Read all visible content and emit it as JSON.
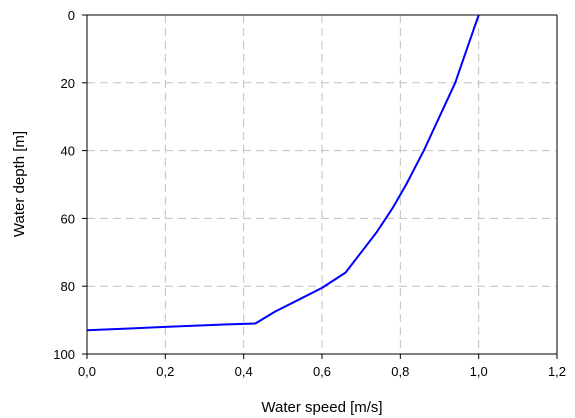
{
  "chart_data": {
    "type": "line",
    "title": "",
    "xlabel": "Water speed [m/s]",
    "ylabel": "Water depth [m]",
    "xlim": [
      0,
      1.2
    ],
    "ylim": [
      0,
      100
    ],
    "y_inverted": true,
    "grid": true,
    "grid_style": "dashed",
    "legend": "none",
    "x_ticks": [
      0,
      0.2,
      0.4,
      0.6,
      0.8,
      1.0,
      1.2
    ],
    "x_tick_labels": [
      "0,0",
      "0,2",
      "0,4",
      "0,6",
      "0,8",
      "1,0",
      "1,2"
    ],
    "y_ticks": [
      0,
      20,
      40,
      60,
      80,
      100
    ],
    "y_tick_labels": [
      "0",
      "20",
      "40",
      "60",
      "80",
      "100"
    ],
    "series": [
      {
        "color": "#0000ff",
        "points": [
          [
            1.0,
            0
          ],
          [
            0.97,
            10
          ],
          [
            0.94,
            20
          ],
          [
            0.9,
            30
          ],
          [
            0.86,
            40
          ],
          [
            0.815,
            50
          ],
          [
            0.78,
            57
          ],
          [
            0.74,
            64
          ],
          [
            0.7,
            70
          ],
          [
            0.66,
            76
          ],
          [
            0.6,
            80.5
          ],
          [
            0.54,
            84
          ],
          [
            0.48,
            87.5
          ],
          [
            0.43,
            91
          ],
          [
            0.35,
            91.3
          ],
          [
            0.2,
            92
          ],
          [
            0.1,
            92.5
          ],
          [
            0.0,
            93
          ]
        ]
      }
    ]
  }
}
